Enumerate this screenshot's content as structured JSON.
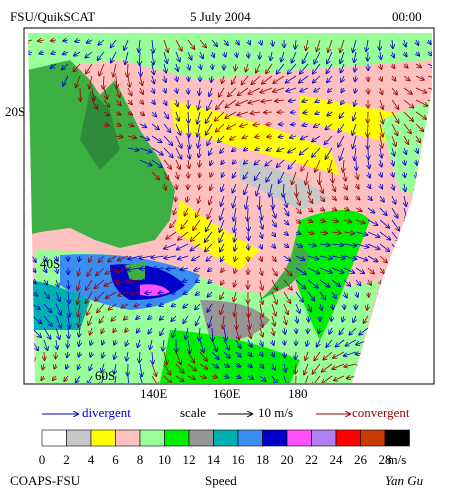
{
  "header": {
    "title": "FSU/QuikSCAT",
    "date": "5 July 2004",
    "time": "00:00"
  },
  "map": {
    "lat_labels": [
      "20S",
      "40S",
      "60S"
    ],
    "lon_labels": [
      "140E",
      "160E",
      "180"
    ]
  },
  "legend": {
    "divergent": "divergent",
    "scale": "scale",
    "scale_value": "10 m/s",
    "convergent": "convergent"
  },
  "colorbar": {
    "labels": [
      0,
      2,
      4,
      6,
      8,
      10,
      12,
      14,
      16,
      18,
      20,
      22,
      24,
      26,
      28
    ],
    "unit": "m/s",
    "colors": [
      "#ffffff",
      "#c8c8c8",
      "#ffff00",
      "#ffc0c0",
      "#99ff99",
      "#00ee00",
      "#969696",
      "#00b0b0",
      "#3a8ef0",
      "#0000c8",
      "#ff50ff",
      "#b080f0",
      "#ff0000",
      "#c83c00",
      "#000000"
    ]
  },
  "footer": {
    "left": "COAPS-FSU",
    "center": "Speed",
    "right": "Yan Gu"
  }
}
